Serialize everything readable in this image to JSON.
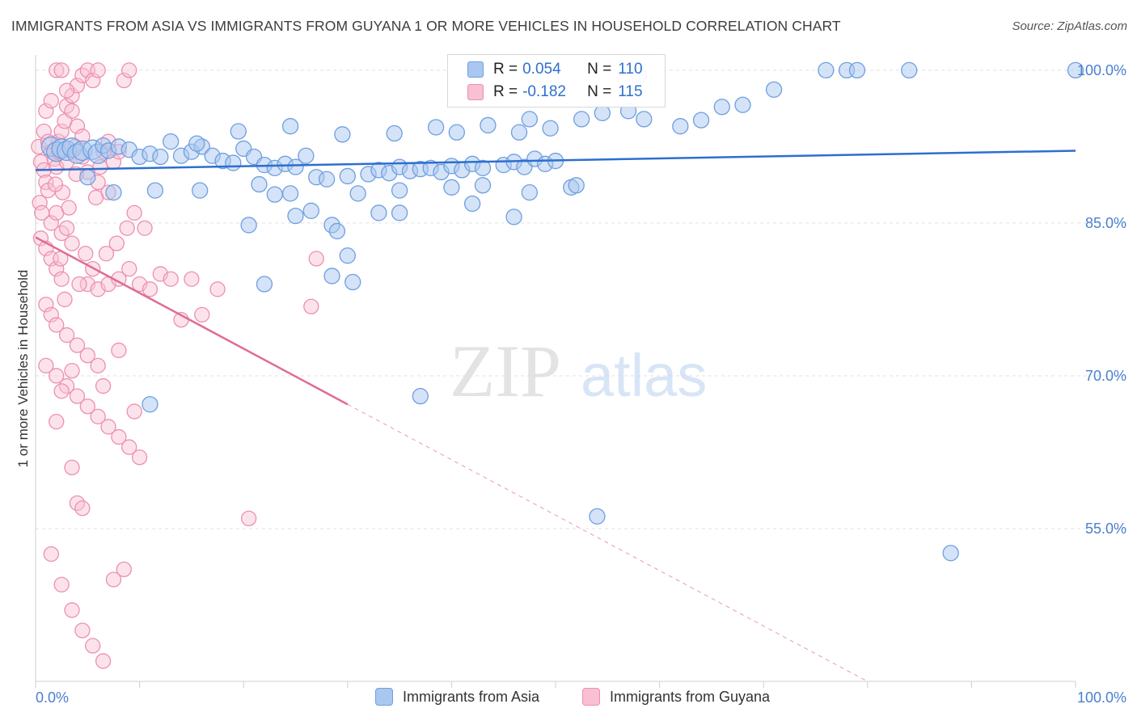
{
  "header": {
    "title": "IMMIGRANTS FROM ASIA VS IMMIGRANTS FROM GUYANA 1 OR MORE VEHICLES IN HOUSEHOLD CORRELATION CHART",
    "source": "Source: ZipAtlas.com"
  },
  "watermark": {
    "zip": "ZIP",
    "atlas": "atlas"
  },
  "legend": {
    "rows": [
      {
        "r_label": "R =",
        "r_value": "0.054",
        "n_label": "N =",
        "n_value": "110"
      },
      {
        "r_label": "R =",
        "r_value": "-0.182",
        "n_label": "N =",
        "n_value": "115"
      }
    ]
  },
  "bottom_legend": {
    "asia": "Immigrants from Asia",
    "guyana": "Immigrants from Guyana"
  },
  "colors": {
    "asia_fill": "#a9c7f0",
    "asia_stroke": "#6f9fe0",
    "asia_line": "#2c6fcf",
    "guyana_fill": "#f8c0d2",
    "guyana_stroke": "#ee8fb0",
    "guyana_line": "#e06b96",
    "tick_label": "#4a7fd0",
    "grid": "#e0e0e0"
  },
  "chart_data": {
    "type": "scatter",
    "title": "IMMIGRANTS FROM ASIA VS IMMIGRANTS FROM GUYANA 1 OR MORE VEHICLES IN HOUSEHOLD CORRELATION CHART",
    "xlabel": "",
    "ylabel": "1 or more Vehicles in Household",
    "xlim": [
      0,
      100
    ],
    "ylim": [
      40,
      101.5
    ],
    "x_tick_labels": [
      "0.0%",
      "100.0%"
    ],
    "y_ticks": [
      55,
      70,
      85,
      100
    ],
    "y_tick_labels": [
      "55.0%",
      "70.0%",
      "85.0%",
      "100.0%"
    ],
    "grid": true,
    "legend_position": "top-center",
    "series": [
      {
        "name": "Immigrants from Asia",
        "r": 0.054,
        "n": 110,
        "trend": {
          "x": [
            0,
            100
          ],
          "y": [
            90.2,
            92.1
          ]
        },
        "points": [
          [
            1.5,
            92.5
          ],
          [
            2.0,
            92.0
          ],
          [
            2.5,
            92.3
          ],
          [
            3.0,
            92.1
          ],
          [
            3.5,
            92.4
          ],
          [
            4.0,
            91.8
          ],
          [
            4.5,
            92.1
          ],
          [
            5.5,
            92.2
          ],
          [
            6.0,
            91.8
          ],
          [
            6.5,
            92.6
          ],
          [
            7.0,
            92.1
          ],
          [
            8.0,
            92.5
          ],
          [
            9.0,
            92.2
          ],
          [
            10.0,
            91.5
          ],
          [
            11.0,
            91.8
          ],
          [
            12.0,
            91.5
          ],
          [
            14.0,
            91.6
          ],
          [
            15.0,
            92.0
          ],
          [
            16.0,
            92.5
          ],
          [
            17.0,
            91.6
          ],
          [
            18.0,
            91.1
          ],
          [
            19.0,
            90.9
          ],
          [
            20.0,
            92.3
          ],
          [
            21.0,
            91.5
          ],
          [
            22.0,
            90.7
          ],
          [
            23.0,
            90.4
          ],
          [
            24.0,
            90.8
          ],
          [
            25.0,
            90.5
          ],
          [
            26.0,
            91.6
          ],
          [
            27.0,
            89.5
          ],
          [
            28.0,
            89.3
          ],
          [
            30.0,
            89.6
          ],
          [
            32.0,
            89.8
          ],
          [
            33.0,
            90.2
          ],
          [
            34.0,
            89.9
          ],
          [
            35.0,
            90.5
          ],
          [
            36.0,
            90.1
          ],
          [
            37.0,
            90.3
          ],
          [
            38.0,
            90.4
          ],
          [
            39.0,
            90.0
          ],
          [
            40.0,
            90.6
          ],
          [
            41.0,
            90.2
          ],
          [
            42.0,
            90.8
          ],
          [
            43.0,
            90.4
          ],
          [
            45.0,
            90.7
          ],
          [
            46.0,
            91.0
          ],
          [
            47.0,
            90.5
          ],
          [
            48.0,
            91.3
          ],
          [
            49.0,
            90.8
          ],
          [
            50.0,
            91.1
          ],
          [
            13.0,
            93.0
          ],
          [
            15.5,
            92.8
          ],
          [
            19.5,
            94.0
          ],
          [
            24.5,
            94.5
          ],
          [
            29.5,
            93.7
          ],
          [
            34.5,
            93.8
          ],
          [
            38.5,
            94.4
          ],
          [
            40.5,
            93.9
          ],
          [
            43.5,
            94.6
          ],
          [
            46.5,
            93.9
          ],
          [
            47.5,
            95.2
          ],
          [
            49.5,
            94.3
          ],
          [
            52.5,
            95.2
          ],
          [
            54.5,
            95.8
          ],
          [
            57.0,
            96.0
          ],
          [
            58.5,
            95.2
          ],
          [
            62.0,
            94.5
          ],
          [
            64.0,
            95.1
          ],
          [
            66.0,
            96.4
          ],
          [
            68.0,
            96.6
          ],
          [
            71.0,
            98.1
          ],
          [
            76.0,
            100.0
          ],
          [
            78.0,
            100.0
          ],
          [
            79.0,
            100.0
          ],
          [
            84.0,
            100.0
          ],
          [
            100.0,
            100.0
          ],
          [
            58.0,
            99.5
          ],
          [
            5.0,
            89.5
          ],
          [
            7.5,
            88.0
          ],
          [
            11.5,
            88.2
          ],
          [
            15.8,
            88.2
          ],
          [
            21.5,
            88.8
          ],
          [
            23.0,
            87.8
          ],
          [
            24.5,
            87.9
          ],
          [
            31.0,
            87.9
          ],
          [
            35.0,
            88.2
          ],
          [
            40.0,
            88.5
          ],
          [
            43.0,
            88.7
          ],
          [
            47.5,
            88.0
          ],
          [
            51.5,
            88.5
          ],
          [
            52.0,
            88.7
          ],
          [
            20.5,
            84.8
          ],
          [
            25.0,
            85.7
          ],
          [
            26.5,
            86.2
          ],
          [
            28.5,
            84.8
          ],
          [
            29.0,
            84.2
          ],
          [
            33.0,
            86.0
          ],
          [
            35.0,
            86.0
          ],
          [
            42.0,
            86.9
          ],
          [
            46.0,
            85.6
          ],
          [
            30.0,
            81.8
          ],
          [
            28.5,
            79.8
          ],
          [
            30.5,
            79.2
          ],
          [
            22.0,
            79.0
          ],
          [
            11.0,
            67.2
          ],
          [
            37.0,
            68.0
          ],
          [
            54.0,
            56.2
          ],
          [
            88.0,
            52.6
          ]
        ]
      },
      {
        "name": "Immigrants from Guyana",
        "r": -0.182,
        "n": 115,
        "trend": {
          "x": [
            0,
            30
          ],
          "y": [
            83.6,
            67.2
          ]
        },
        "trend_dashed": {
          "x": [
            30,
            80
          ],
          "y": [
            67.2,
            40.0
          ]
        },
        "points": [
          [
            0.3,
            92.5
          ],
          [
            0.5,
            91.0
          ],
          [
            0.8,
            90.2
          ],
          [
            1.0,
            89.0
          ],
          [
            1.2,
            88.2
          ],
          [
            0.4,
            87.0
          ],
          [
            0.6,
            86.0
          ],
          [
            1.5,
            92.0
          ],
          [
            1.8,
            91.3
          ],
          [
            2.0,
            90.5
          ],
          [
            2.2,
            93.0
          ],
          [
            2.5,
            94.0
          ],
          [
            2.8,
            95.0
          ],
          [
            3.0,
            96.5
          ],
          [
            3.5,
            97.5
          ],
          [
            4.0,
            98.5
          ],
          [
            4.5,
            99.5
          ],
          [
            5.0,
            100.0
          ],
          [
            5.5,
            99.0
          ],
          [
            6.0,
            100.0
          ],
          [
            2.0,
            100.0
          ],
          [
            2.5,
            100.0
          ],
          [
            3.0,
            98.0
          ],
          [
            3.5,
            96.0
          ],
          [
            4.0,
            94.5
          ],
          [
            4.5,
            93.5
          ],
          [
            6.5,
            92.0
          ],
          [
            7.0,
            93.0
          ],
          [
            7.5,
            91.0
          ],
          [
            8.0,
            92.0
          ],
          [
            8.5,
            99.0
          ],
          [
            9.0,
            100.0
          ],
          [
            1.0,
            96.0
          ],
          [
            1.5,
            97.0
          ],
          [
            0.8,
            94.0
          ],
          [
            1.2,
            93.0
          ],
          [
            2.2,
            92.0
          ],
          [
            3.0,
            91.0
          ],
          [
            3.8,
            92.5
          ],
          [
            4.5,
            91.5
          ],
          [
            5.0,
            90.0
          ],
          [
            6.0,
            89.0
          ],
          [
            7.0,
            88.0
          ],
          [
            1.5,
            85.0
          ],
          [
            2.0,
            86.0
          ],
          [
            2.5,
            84.0
          ],
          [
            3.0,
            84.5
          ],
          [
            3.5,
            83.0
          ],
          [
            0.5,
            83.5
          ],
          [
            1.0,
            82.5
          ],
          [
            1.5,
            81.5
          ],
          [
            2.0,
            80.5
          ],
          [
            2.5,
            79.5
          ],
          [
            5.0,
            79.0
          ],
          [
            6.0,
            78.5
          ],
          [
            7.0,
            79.0
          ],
          [
            8.0,
            79.5
          ],
          [
            9.0,
            80.5
          ],
          [
            10.0,
            79.0
          ],
          [
            11.0,
            78.5
          ],
          [
            12.0,
            80.0
          ],
          [
            13.0,
            79.5
          ],
          [
            15.0,
            79.5
          ],
          [
            17.5,
            78.5
          ],
          [
            14.0,
            75.5
          ],
          [
            16.0,
            76.0
          ],
          [
            26.5,
            76.8
          ],
          [
            27.0,
            81.5
          ],
          [
            1.0,
            77.0
          ],
          [
            1.5,
            76.0
          ],
          [
            2.0,
            75.0
          ],
          [
            3.0,
            74.0
          ],
          [
            4.0,
            73.0
          ],
          [
            5.0,
            72.0
          ],
          [
            6.0,
            71.0
          ],
          [
            1.0,
            71.0
          ],
          [
            2.0,
            70.0
          ],
          [
            3.0,
            69.0
          ],
          [
            4.0,
            68.0
          ],
          [
            5.0,
            67.0
          ],
          [
            6.0,
            66.0
          ],
          [
            7.0,
            65.0
          ],
          [
            8.0,
            64.0
          ],
          [
            9.0,
            63.0
          ],
          [
            10.0,
            62.0
          ],
          [
            3.5,
            61.0
          ],
          [
            4.0,
            57.5
          ],
          [
            4.5,
            57.0
          ],
          [
            20.5,
            56.0
          ],
          [
            1.5,
            52.5
          ],
          [
            2.5,
            49.5
          ],
          [
            3.5,
            47.0
          ],
          [
            4.5,
            45.0
          ],
          [
            5.5,
            43.5
          ],
          [
            6.5,
            42.0
          ],
          [
            7.5,
            50.0
          ],
          [
            8.5,
            51.0
          ],
          [
            2.0,
            65.5
          ],
          [
            2.5,
            68.5
          ],
          [
            3.5,
            70.5
          ],
          [
            9.5,
            66.5
          ],
          [
            8.0,
            72.5
          ],
          [
            6.5,
            69.0
          ],
          [
            2.8,
            77.5
          ],
          [
            4.2,
            79.0
          ],
          [
            5.5,
            80.5
          ],
          [
            6.8,
            82.0
          ],
          [
            7.8,
            83.0
          ],
          [
            8.8,
            84.5
          ],
          [
            9.5,
            86.0
          ],
          [
            10.5,
            84.5
          ],
          [
            4.8,
            82.0
          ],
          [
            3.2,
            86.5
          ],
          [
            2.6,
            88.0
          ],
          [
            5.8,
            87.5
          ],
          [
            6.2,
            90.5
          ],
          [
            3.9,
            89.8
          ],
          [
            1.9,
            88.8
          ],
          [
            2.4,
            81.5
          ]
        ]
      }
    ]
  }
}
